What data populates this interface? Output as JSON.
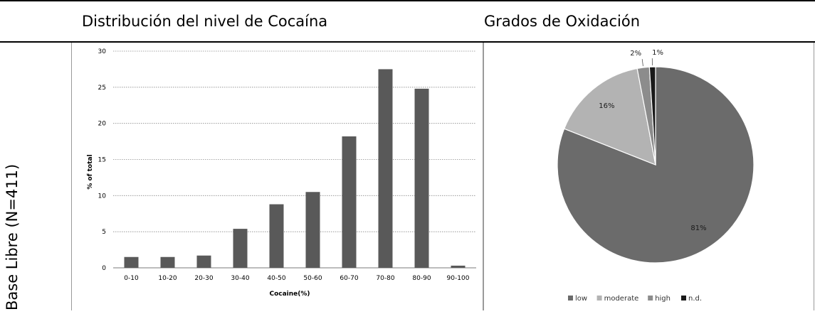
{
  "header": {
    "left_title": "Distribución del nivel de Cocaína",
    "right_title": "Grados de Oxidación",
    "row_label": "Base Libre (N=411)"
  },
  "chart_data": [
    {
      "type": "bar",
      "categories": [
        "0-10",
        "10-20",
        "20-30",
        "30-40",
        "40-50",
        "50-60",
        "60-70",
        "70-80",
        "80-90",
        "90-100"
      ],
      "values": [
        1.5,
        1.5,
        1.7,
        5.4,
        8.8,
        10.5,
        18.2,
        27.5,
        24.8,
        0.3
      ],
      "title": "",
      "xlabel": "Cocaine(%)",
      "ylabel": "% of total",
      "ylim": [
        0,
        30
      ],
      "yticks": [
        0,
        5,
        10,
        15,
        20,
        25,
        30
      ],
      "grid": true,
      "color": "#595959"
    },
    {
      "type": "pie",
      "labels": [
        "low",
        "moderate",
        "high",
        "n.d."
      ],
      "values": [
        81,
        16,
        2,
        1
      ],
      "data_labels": [
        "81%",
        "16%",
        "2%",
        "1%"
      ],
      "colors": [
        "#6b6b6b",
        "#b3b3b3",
        "#8c8c8c",
        "#1a1a1a"
      ],
      "legend_position": "bottom"
    }
  ]
}
